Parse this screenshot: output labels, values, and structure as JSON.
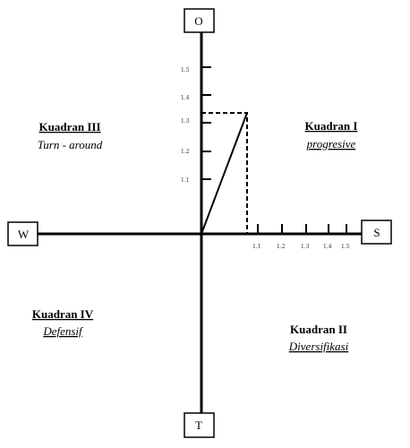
{
  "axes": {
    "top": "O",
    "bottom": "T",
    "left": "W",
    "right": "S",
    "x_ticks": [
      "1.1",
      "1.2",
      "1.3",
      "1.4",
      "1.5"
    ],
    "y_ticks": [
      "1.1",
      "1.2",
      "1.3",
      "1.4",
      "1.5"
    ]
  },
  "quadrants": {
    "q1": {
      "title": "Kuadran I",
      "subtitle": "progresive"
    },
    "q2": {
      "title": "Kuadran II",
      "subtitle": "Diversifikasi"
    },
    "q3": {
      "title": "Kuadran III",
      "subtitle": "Turn - around"
    },
    "q4": {
      "title": "Kuadran IV",
      "subtitle": "Defensif"
    }
  },
  "point": {
    "x": 1.05,
    "y": 1.33
  }
}
